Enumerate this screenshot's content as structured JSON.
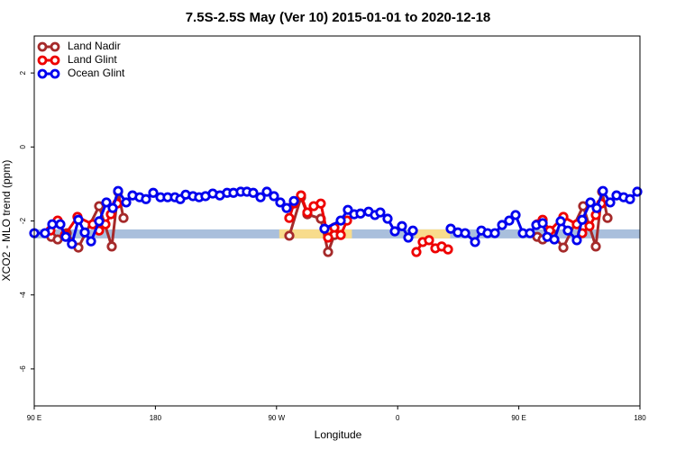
{
  "chart_data": {
    "type": "line",
    "title": "7.5S-2.5S May (Ver 10)   2015-01-01 to 2020-12-18",
    "xlabel": "Longitude",
    "ylabel": "XCO2 - MLO trend (ppm)",
    "xlim": [
      90,
      540
    ],
    "ylim": [
      -7,
      3
    ],
    "xticks": [
      {
        "value": 90,
        "label": "90 E"
      },
      180,
      {
        "value": 270,
        "label": "90 W"
      },
      {
        "value": 360,
        "label": "0"
      },
      {
        "value": 450,
        "label": "90 E"
      },
      {
        "value": 540,
        "label": "180"
      }
    ],
    "yticks": [
      -6,
      -4,
      -2,
      0,
      2
    ],
    "legend": "top-left",
    "band": {
      "y": -2.35,
      "color": "#a9bfdc",
      "highlight_color": "#f8dc8c",
      "highlight_ranges": [
        [
          272,
          326
        ],
        [
          373,
          399
        ]
      ]
    },
    "series": [
      {
        "name": "Land Nadir",
        "color": "#a52a2a",
        "x": [
          102.7,
          107.4,
          114.1,
          122.8,
          138.2,
          147.6,
          152.3,
          156.3,
          null,
          279.5,
          288.2,
          292.9,
          302.9,
          308.3,
          313,
          null,
          463.7,
          467.7,
          474.4,
          483.1,
          497.8,
          507.2,
          511.9,
          515.9
        ],
        "values": [
          -2.43,
          -2.5,
          -2.33,
          -2.72,
          -1.6,
          -2.69,
          -1.21,
          -1.92,
          null,
          -2.4,
          -1.36,
          -1.82,
          -1.94,
          -2.84,
          -2.38,
          null,
          -2.43,
          -2.5,
          -2.33,
          -2.72,
          -1.6,
          -2.69,
          -1.21,
          -1.92
        ]
      },
      {
        "name": "Land Glint",
        "color": "#ee0000",
        "x": [
          102,
          107.4,
          112.8,
          122.1,
          133.5,
          138.2,
          142.9,
          146.9,
          151.6,
          null,
          279.5,
          282.9,
          288.2,
          292.9,
          297.6,
          302.9,
          308.3,
          313,
          317.7,
          322.4,
          null,
          373.9,
          378.6,
          383.3,
          388,
          392.7,
          397.4,
          null,
          463.7,
          467.7,
          473,
          483.1,
          493.1,
          497.1,
          502.5,
          507.2,
          511.2
        ],
        "values": [
          -2.26,
          -1.99,
          -2.38,
          -1.89,
          -2.09,
          -2.26,
          -2.09,
          -1.82,
          -1.53,
          null,
          -1.92,
          -1.53,
          -1.31,
          -1.77,
          -1.6,
          -1.53,
          -2.45,
          -2.18,
          -2.38,
          -1.99,
          null,
          -2.84,
          -2.57,
          -2.52,
          -2.74,
          -2.69,
          -2.77,
          null,
          -2.09,
          -1.97,
          -2.26,
          -1.89,
          -2.09,
          -2.33,
          -2.14,
          -1.84,
          -1.53
        ]
      },
      {
        "name": "Ocean Glint",
        "color": "#0000ee",
        "x": [
          90,
          98,
          103.4,
          109.4,
          113.4,
          118,
          122.8,
          127.5,
          132.2,
          138.2,
          143.6,
          148.3,
          152.3,
          158.3,
          163,
          168.3,
          173,
          178.4,
          183.8,
          189.1,
          194.5,
          198.5,
          202.5,
          207.9,
          212.5,
          217.2,
          222.6,
          227.9,
          233.3,
          238,
          243.4,
          248,
          252.7,
          258.1,
          262.8,
          268.1,
          272.8,
          277.5,
          282.9,
          null,
          305.6,
          317.7,
          323,
          327.7,
          332.4,
          338.4,
          343.1,
          347.1,
          352.5,
          357.9,
          363.2,
          367.9,
          371.3,
          null,
          399.4,
          404.7,
          410.1,
          417.5,
          422.2,
          426.8,
          432.2,
          437.6,
          442.9,
          447.6,
          453,
          458.3,
          463,
          467.7,
          471.1,
          476.4,
          481.1,
          486.4,
          493.1,
          497.1,
          503.2,
          507.9,
          512.5,
          517.9,
          522.6,
          527.9,
          532.6,
          538
        ],
        "values": [
          -2.33,
          -2.33,
          -2.09,
          -2.09,
          -2.43,
          -2.62,
          -1.97,
          -2.31,
          -2.55,
          -2.01,
          -1.5,
          -1.65,
          -1.19,
          -1.5,
          -1.31,
          -1.36,
          -1.41,
          -1.24,
          -1.36,
          -1.36,
          -1.36,
          -1.41,
          -1.29,
          -1.33,
          -1.36,
          -1.33,
          -1.26,
          -1.31,
          -1.24,
          -1.24,
          -1.21,
          -1.21,
          -1.24,
          -1.36,
          -1.21,
          -1.33,
          -1.5,
          -1.65,
          -1.46,
          null,
          -2.21,
          -1.99,
          -1.7,
          -1.82,
          -1.8,
          -1.75,
          -1.84,
          -1.77,
          -1.94,
          -2.28,
          -2.14,
          -2.45,
          -2.26,
          null,
          -2.21,
          -2.31,
          -2.33,
          -2.57,
          -2.26,
          -2.33,
          -2.33,
          -2.11,
          -1.99,
          -1.84,
          -2.33,
          -2.33,
          -2.11,
          -2.06,
          -2.43,
          -2.5,
          -2.01,
          -2.26,
          -2.52,
          -1.97,
          -1.5,
          -1.65,
          -1.19,
          -1.5,
          -1.31,
          -1.36,
          -1.41,
          -1.21
        ]
      }
    ]
  }
}
